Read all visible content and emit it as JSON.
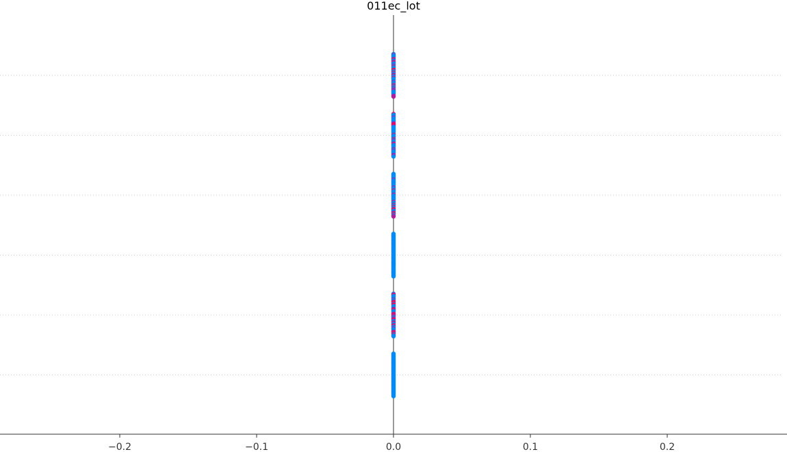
{
  "chart_data": {
    "type": "scatter",
    "title": "011ec_lot",
    "xlabel": "",
    "ylabel": "",
    "xlim": [
      -0.2875,
      0.2875
    ],
    "xticks": [
      -0.2,
      -0.1,
      0.0,
      0.1,
      0.2
    ],
    "xtick_labels": [
      "−0.2",
      "−0.1",
      "0.0",
      "0.1",
      "0.2"
    ],
    "grid": "horizontal-dotted",
    "rows": [
      {
        "values": [
          0.0
        ],
        "low_color_share": 0.55,
        "spread": [
          -0.0,
          0.0
        ]
      },
      {
        "values": [
          0.0
        ],
        "low_color_share": 0.75,
        "spread": [
          -0.0,
          0.0
        ]
      },
      {
        "values": [
          0.0
        ],
        "low_color_share": 0.75,
        "spread": [
          -0.0,
          0.0
        ]
      },
      {
        "values": [
          0.0
        ],
        "low_color_share": 1.0,
        "spread": [
          -0.0,
          0.0
        ]
      },
      {
        "values": [
          0.0
        ],
        "low_color_share": 0.55,
        "spread": [
          -0.0,
          0.0
        ]
      },
      {
        "values": [
          0.0
        ],
        "low_color_share": 1.0,
        "spread": [
          -0.0,
          0.0
        ]
      }
    ],
    "colors": {
      "low": "#008bfb",
      "high": "#ff0052",
      "mid": "#b21d9b",
      "zero_line": "#999999",
      "axis": "#333333",
      "grid": "#cccccc"
    }
  }
}
